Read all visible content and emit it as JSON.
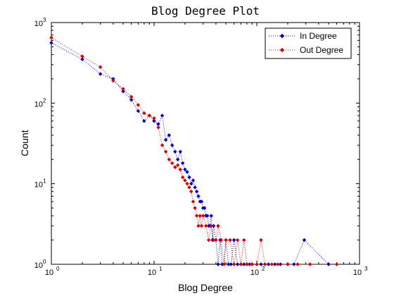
{
  "chart_data": {
    "type": "line",
    "title": "Blog Degree Plot",
    "xlabel": "Blog Degree",
    "ylabel": "Count",
    "xscale": "log",
    "yscale": "log",
    "xlim": [
      1,
      1000
    ],
    "ylim": [
      1,
      1000
    ],
    "x_ticks": [
      1,
      10,
      100,
      1000
    ],
    "y_ticks": [
      1,
      10,
      100,
      1000
    ],
    "tick_label_base": "10",
    "x_tick_exponents": [
      "0",
      "1",
      "2",
      "3"
    ],
    "y_tick_exponents": [
      "0",
      "1",
      "2",
      "3"
    ],
    "grid": false,
    "legend_position": "top-right",
    "series": [
      {
        "name": "In Degree",
        "color": "#0000cc",
        "marker": "diamond",
        "line_style": "dotted",
        "x": [
          1,
          2,
          3,
          4,
          5,
          6,
          7,
          8,
          9,
          10,
          11,
          12,
          13,
          14,
          15,
          16,
          17,
          18,
          19,
          20,
          21,
          22,
          23,
          24,
          25,
          26,
          27,
          28,
          29,
          30,
          31,
          32,
          33,
          34,
          35,
          36,
          37,
          38,
          40,
          42,
          44,
          46,
          48,
          50,
          53,
          56,
          60,
          65,
          70,
          75,
          80,
          85,
          90,
          100,
          110,
          120,
          130,
          150,
          170,
          200,
          230,
          290,
          500
        ],
        "y": [
          560,
          350,
          230,
          200,
          140,
          110,
          80,
          60,
          70,
          60,
          55,
          70,
          35,
          40,
          30,
          25,
          20,
          25,
          18,
          15,
          14,
          12,
          10,
          11,
          9,
          8,
          7,
          6,
          6,
          5,
          5,
          4,
          4,
          3,
          3,
          4,
          2,
          3,
          2,
          1,
          2,
          1,
          1,
          2,
          1,
          1,
          2,
          1,
          1,
          1,
          1,
          1,
          1,
          1,
          1,
          1,
          1,
          1,
          1,
          1,
          1,
          2,
          1
        ]
      },
      {
        "name": "Out Degree",
        "color": "#dd0000",
        "marker": "diamond",
        "line_style": "dotted",
        "x": [
          1,
          2,
          3,
          4,
          5,
          6,
          7,
          8,
          9,
          10,
          11,
          12,
          13,
          14,
          15,
          16,
          17,
          18,
          19,
          20,
          21,
          22,
          23,
          24,
          25,
          26,
          27,
          28,
          29,
          30,
          32,
          34,
          36,
          38,
          40,
          42,
          45,
          48,
          50,
          55,
          60,
          65,
          70,
          75,
          80,
          90,
          100,
          110,
          120,
          140,
          160,
          200,
          250,
          330,
          600
        ],
        "y": [
          650,
          380,
          280,
          190,
          150,
          120,
          95,
          75,
          70,
          65,
          50,
          30,
          25,
          20,
          18,
          16,
          17,
          15,
          12,
          11,
          10,
          9,
          8,
          6,
          5,
          4,
          3,
          4,
          3,
          4,
          3,
          2,
          3,
          2,
          2,
          3,
          2,
          1,
          2,
          2,
          1,
          2,
          1,
          2,
          1,
          1,
          1,
          2,
          1,
          1,
          1,
          1,
          1,
          1,
          1
        ]
      }
    ]
  }
}
